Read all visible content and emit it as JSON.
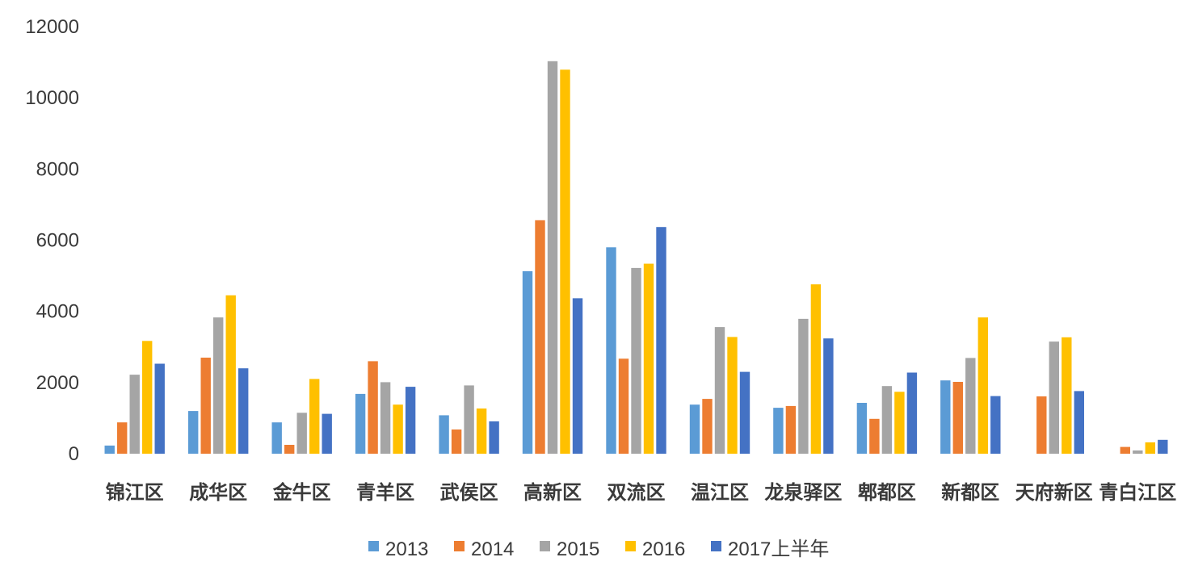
{
  "chart_data": {
    "type": "bar",
    "title": "",
    "xlabel": "",
    "ylabel": "",
    "ylim": [
      0,
      12000
    ],
    "yticks": [
      0,
      2000,
      4000,
      6000,
      8000,
      10000,
      12000
    ],
    "grid": false,
    "legend_position": "bottom",
    "categories": [
      "锦江区",
      "成华区",
      "金牛区",
      "青羊区",
      "武侯区",
      "高新区",
      "双流区",
      "温江区",
      "龙泉驿区",
      "郫都区",
      "新都区",
      "天府新区",
      "青白江区"
    ],
    "series": [
      {
        "name": "2013",
        "color": "#5B9BD5",
        "values": [
          230,
          1200,
          880,
          1680,
          1080,
          5130,
          5800,
          1380,
          1290,
          1430,
          2060,
          null,
          null
        ]
      },
      {
        "name": "2014",
        "color": "#ED7D31",
        "values": [
          880,
          2700,
          250,
          2600,
          680,
          6560,
          2670,
          1540,
          1340,
          980,
          2020,
          1610,
          190
        ]
      },
      {
        "name": "2015",
        "color": "#A5A5A5",
        "values": [
          2220,
          3830,
          1150,
          2010,
          1920,
          11030,
          5220,
          3560,
          3790,
          1900,
          2690,
          3150,
          90
        ]
      },
      {
        "name": "2016",
        "color": "#FFC000",
        "values": [
          3170,
          4450,
          2100,
          1380,
          1270,
          10790,
          5340,
          3280,
          4760,
          1740,
          3830,
          3270,
          320
        ]
      },
      {
        "name": "2017上半年",
        "color": "#4472C4",
        "values": [
          2530,
          2400,
          1120,
          1880,
          910,
          4370,
          6370,
          2300,
          3240,
          2280,
          1620,
          1760,
          390
        ]
      }
    ]
  }
}
